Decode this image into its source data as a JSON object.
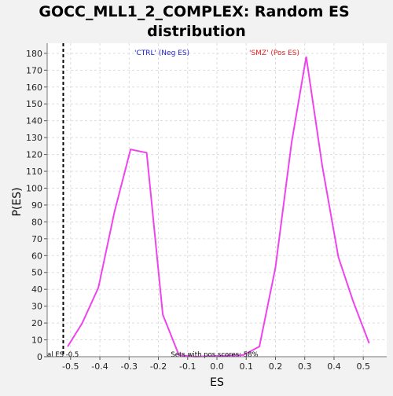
{
  "chart_data": {
    "type": "line",
    "title_line1": "GOCC_MLL1_2_COMPLEX: Random ES",
    "title_line2": "distribution",
    "xlabel": "ES",
    "ylabel": "P(ES)",
    "xlim": [
      -0.58,
      0.58
    ],
    "ylim": [
      0,
      186
    ],
    "x_ticks": [
      -0.5,
      -0.4,
      -0.3,
      -0.2,
      -0.1,
      0.0,
      0.1,
      0.2,
      0.3,
      0.4,
      0.5
    ],
    "x_tick_labels": [
      "-0.5",
      "-0.4",
      "-0.3",
      "-0.2",
      "-0.1",
      "0.0",
      "0.1",
      "0.2",
      "0.3",
      "0.4",
      "0.5"
    ],
    "y_ticks": [
      0,
      10,
      20,
      30,
      40,
      50,
      60,
      70,
      80,
      90,
      100,
      110,
      120,
      130,
      140,
      150,
      160,
      170,
      180
    ],
    "grid": true,
    "series": [
      {
        "color": "#ee44ee",
        "x": [
          -0.51,
          -0.46,
          -0.405,
          -0.35,
          -0.295,
          -0.24,
          -0.185,
          -0.13,
          -0.075,
          0.09,
          0.145,
          0.2,
          0.255,
          0.305,
          0.36,
          0.415,
          0.465,
          0.52
        ],
        "y": [
          6,
          20,
          41,
          86,
          123,
          121,
          25,
          1,
          0,
          1,
          6,
          53,
          127,
          178,
          113,
          59,
          33,
          8
        ]
      }
    ],
    "neg_label": "'CTRL' (Neg ES)",
    "neg_label_color": "#2222cc",
    "pos_label": "'SMZ' (Pos ES)",
    "pos_label_color": "#dd2222",
    "actual_es": -0.525,
    "actual_es_label": "al ES -0.5",
    "pos_scores_label": "Sets with pos scores: 58%"
  }
}
